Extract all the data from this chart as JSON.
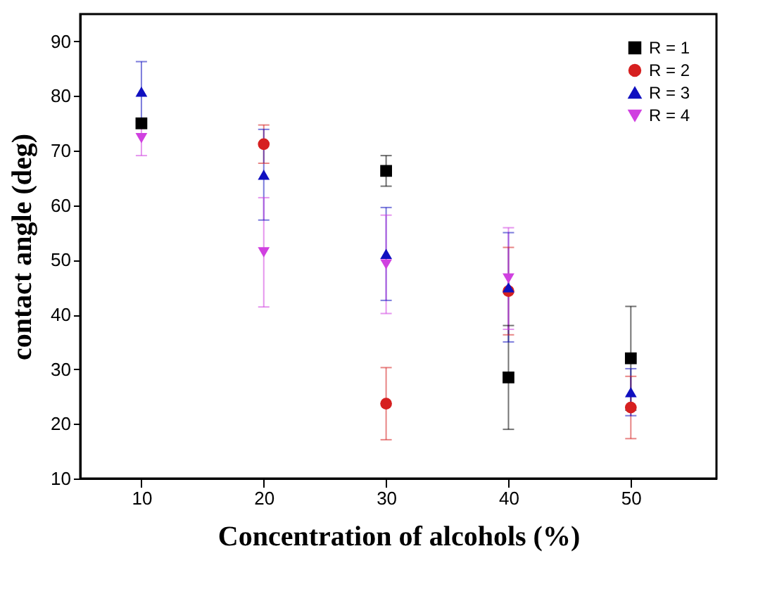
{
  "chart_data": {
    "type": "scatter",
    "xlabel": "Concentration of alcohols (%)",
    "ylabel": "contact angle (deg)",
    "x": [
      10,
      20,
      30,
      40,
      50
    ],
    "xlim": [
      5,
      57
    ],
    "xticks": [
      10,
      20,
      30,
      40,
      50
    ],
    "ylim": [
      10,
      95
    ],
    "yticks": [
      10,
      20,
      30,
      40,
      50,
      60,
      70,
      80,
      90
    ],
    "legend": "top right",
    "grid": false,
    "series": [
      {
        "name": "R = 1",
        "color": "#000000",
        "marker": "square",
        "values": [
          75,
          null,
          66.3,
          28.5,
          32
        ],
        "errors": [
          null,
          null,
          2.8,
          9.5,
          9.5
        ]
      },
      {
        "name": "R = 2",
        "color": "#d62020",
        "marker": "circle",
        "values": [
          null,
          71.2,
          23.7,
          44.3,
          23
        ],
        "errors": [
          null,
          3.5,
          6.6,
          8,
          5.7
        ]
      },
      {
        "name": "R = 3",
        "color": "#1010c0",
        "marker": "triangle",
        "values": [
          80.8,
          65.6,
          51.1,
          45,
          25.8
        ],
        "errors": [
          5.5,
          8.3,
          8.5,
          10,
          4.3
        ]
      },
      {
        "name": "R = 4",
        "color": "#d040e0",
        "marker": "triangle-down",
        "values": [
          72.3,
          51.4,
          49.2,
          46.6,
          null
        ],
        "errors": [
          3.2,
          10,
          9,
          9.3,
          null
        ]
      }
    ]
  }
}
